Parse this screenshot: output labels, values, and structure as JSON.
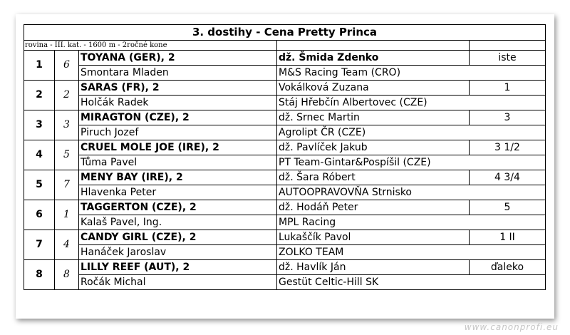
{
  "title": "3. dostihy - Cena Pretty Princa",
  "race_info": "rovina - III. kat. - 1600 m - 2ročné kone",
  "watermark": "www.canonprofi.eu",
  "entries": [
    {
      "position": "1",
      "draw": "6",
      "horse": "TOYANA (GER), 2",
      "jockey": "dž. Šmida Zdenko",
      "result": "iste",
      "trainer": "Smontara Mladen",
      "owner": "M&S Racing Team (CRO)"
    },
    {
      "position": "2",
      "draw": "2",
      "horse": "SARAS (FR), 2",
      "jockey": "Vokálková Zuzana",
      "result": "1",
      "trainer": "Holčák Radek",
      "owner": "Stáj Hřebčín Albertovec (CZE)"
    },
    {
      "position": "3",
      "draw": "3",
      "horse": "MIRAGTON (CZE), 2",
      "jockey": "dž. Srnec Martin",
      "result": "3",
      "trainer": "Piruch Jozef",
      "owner": "Agrolipt ČR (CZE)"
    },
    {
      "position": "4",
      "draw": "5",
      "horse": "CRUEL MOLE JOE (IRE), 2",
      "jockey": "dž. Pavlíček Jakub",
      "result": "3 1/2",
      "trainer": "Tůma Pavel",
      "owner": "PT Team-Gintar&Pospíšil (CZE)"
    },
    {
      "position": "5",
      "draw": "7",
      "horse": "MENY BAY (IRE), 2",
      "jockey": "dž. Šara Róbert",
      "result": "4 3/4",
      "trainer": "Hlavenka Peter",
      "owner": "AUTOOPRAVOVŇA Strnisko"
    },
    {
      "position": "6",
      "draw": "1",
      "horse": "TAGGERTON (CZE), 2",
      "jockey": "dž. Hodáň Peter",
      "result": "5",
      "trainer": "Kalaš Pavel, Ing.",
      "owner": "MPL Racing"
    },
    {
      "position": "7",
      "draw": "4",
      "horse": "CANDY GIRL (CZE), 2",
      "jockey": "Lukaščík Pavol",
      "result": "1 II",
      "trainer": "Hanáček Jaroslav",
      "owner": "ZOLKO TEAM"
    },
    {
      "position": "8",
      "draw": "8",
      "horse": "LILLY REEF (AUT), 2",
      "jockey": "dž. Havlík Ján",
      "result": "ďaleko",
      "trainer": "Ročák Michal",
      "owner": "Gestüt Celtic-Hill SK"
    }
  ]
}
